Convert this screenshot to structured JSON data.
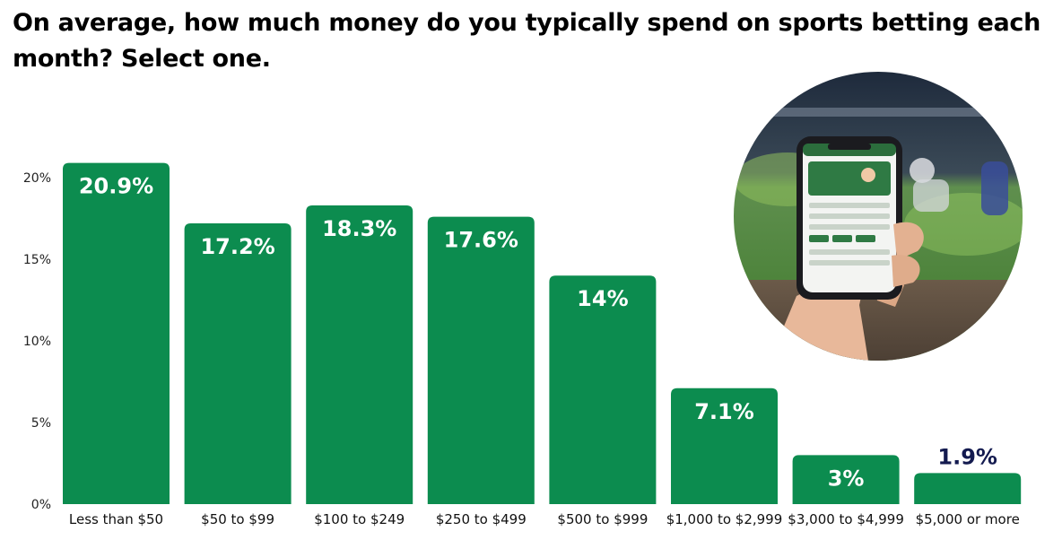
{
  "chart_data": {
    "type": "bar",
    "title": "On average, how much money do you typically spend on sports betting each month? Select one.",
    "categories": [
      "Less than $50",
      "$50 to $99",
      "$100 to $249",
      "$250 to $499",
      "$500 to $999",
      "$1,000 to $2,999",
      "$3,000 to $4,999",
      "$5,000 or more"
    ],
    "values": [
      20.9,
      17.2,
      18.3,
      17.6,
      14,
      7.1,
      3,
      1.9
    ],
    "data_labels": [
      "20.9%",
      "17.2%",
      "18.3%",
      "17.6%",
      "14%",
      "7.1%",
      "3%",
      "1.9%"
    ],
    "y_ticks": [
      "0%",
      "5%",
      "10%",
      "15%",
      "20%"
    ],
    "y_tick_values": [
      0,
      5,
      10,
      15,
      20
    ],
    "ylim": [
      0,
      20
    ],
    "xlabel": "",
    "ylabel": "",
    "grid": false,
    "legend": "none",
    "bar_color": "#0c8c4f",
    "label_inside_color": "#ffffff",
    "label_outside_color": "#131a4f"
  },
  "image": {
    "icon": "hand-holding-phone-sports-betting-photo"
  }
}
